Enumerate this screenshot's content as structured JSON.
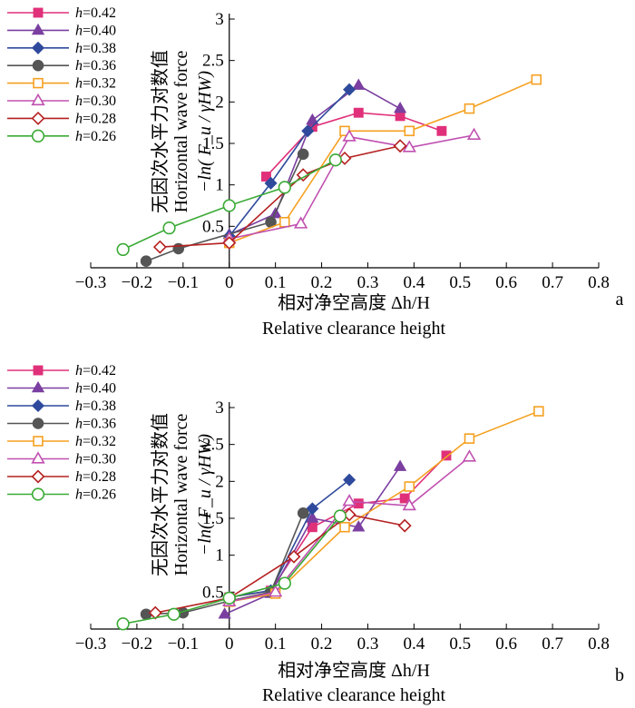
{
  "figure": {
    "panels": [
      "a",
      "b"
    ]
  },
  "chart_data": [
    {
      "type": "line",
      "panel_label": "a",
      "xlabel_cn": "相对净空高度 Δh/H",
      "xlabel_en": "Relative clearance height",
      "ylabel_cn": "无因次水平力对数值",
      "ylabel_en": "Horizontal wave force",
      "ylabel_formula": "−ln( F_u / γHW)",
      "xlim": [
        -0.3,
        0.8
      ],
      "ylim": [
        0,
        3
      ],
      "xticks": [
        -0.3,
        -0.2,
        -0.1,
        0,
        0.1,
        0.2,
        0.3,
        0.4,
        0.5,
        0.6,
        0.7,
        0.8
      ],
      "xtick_labels": [
        "−0.3",
        "−0.2",
        "−0.1",
        "0",
        "0.1",
        "0.2",
        "0.3",
        "0.4",
        "0.5",
        "0.6",
        "0.7",
        "0.8"
      ],
      "yticks": [
        0.5,
        1,
        1.5,
        2,
        2.5,
        3
      ],
      "ytick_labels": [
        "0.5",
        "1",
        "1.5",
        "2",
        "2.5",
        "3"
      ],
      "legend_position": "top-left",
      "series": [
        {
          "name": "h=0.42",
          "label_var": "h",
          "label_val": "=0.42",
          "color": "#e0307a",
          "marker": "square-filled",
          "x": [
            0.08,
            0.18,
            0.28,
            0.37,
            0.46
          ],
          "y": [
            1.1,
            1.7,
            1.87,
            1.83,
            1.65
          ]
        },
        {
          "name": "h=0.40",
          "label_var": "h",
          "label_val": "=0.40",
          "color": "#7a3fa0",
          "marker": "triangle-filled",
          "x": [
            0.0,
            0.1,
            0.18,
            0.28,
            0.37
          ],
          "y": [
            0.4,
            0.65,
            1.78,
            2.2,
            1.92
          ]
        },
        {
          "name": "h=0.38",
          "label_var": "h",
          "label_val": "=0.38",
          "color": "#2f4a9c",
          "marker": "diamond-filled",
          "x": [
            0.0,
            0.09,
            0.17,
            0.26
          ],
          "y": [
            0.38,
            1.02,
            1.65,
            2.15
          ]
        },
        {
          "name": "h=0.36",
          "label_var": "h",
          "label_val": "=0.36",
          "color": "#555555",
          "marker": "circle-filled",
          "x": [
            -0.18,
            -0.11,
            0.09,
            0.16
          ],
          "y": [
            0.08,
            0.23,
            0.55,
            1.37
          ]
        },
        {
          "name": "h=0.32",
          "label_var": "h",
          "label_val": "=0.32",
          "color": "#f5a020",
          "marker": "square-open",
          "x": [
            0.0,
            0.12,
            0.25,
            0.39,
            0.52,
            0.665
          ],
          "y": [
            0.3,
            0.55,
            1.65,
            1.65,
            1.92,
            2.27
          ]
        },
        {
          "name": "h=0.30",
          "label_var": "h",
          "label_val": "=0.30",
          "color": "#c050b0",
          "marker": "triangle-open",
          "x": [
            0.0,
            0.155,
            0.26,
            0.39,
            0.53
          ],
          "y": [
            0.35,
            0.53,
            1.58,
            1.45,
            1.6
          ]
        },
        {
          "name": "h=0.28",
          "label_var": "h",
          "label_val": "=0.28",
          "color": "#b52020",
          "marker": "diamond-open",
          "x": [
            -0.15,
            0.0,
            0.16,
            0.25,
            0.37
          ],
          "y": [
            0.25,
            0.3,
            1.12,
            1.32,
            1.47
          ]
        },
        {
          "name": "h=0.26",
          "label_var": "h",
          "label_val": "=0.26",
          "color": "#3aaa35",
          "marker": "circle-open",
          "x": [
            -0.23,
            -0.13,
            0.0,
            0.12,
            0.23
          ],
          "y": [
            0.22,
            0.48,
            0.75,
            0.97,
            1.3
          ]
        }
      ]
    },
    {
      "type": "line",
      "panel_label": "b",
      "xlabel_cn": "相对净空高度 Δh/H",
      "xlabel_en": "Relative clearance height",
      "ylabel_cn": "无因次水平力对数值",
      "ylabel_en": "Horizontal wave force",
      "ylabel_formula": "−ln( F_u / γHW)",
      "xlim": [
        -0.3,
        0.8
      ],
      "ylim": [
        0,
        3
      ],
      "xticks": [
        -0.3,
        -0.2,
        -0.1,
        0,
        0.1,
        0.2,
        0.3,
        0.4,
        0.5,
        0.6,
        0.7,
        0.8
      ],
      "xtick_labels": [
        "−0.3",
        "−0.2",
        "−0.1",
        "0",
        "0.1",
        "0.2",
        "0.3",
        "0.4",
        "0.5",
        "0.6",
        "0.7",
        "0.8"
      ],
      "yticks": [
        0.5,
        1,
        1.5,
        2,
        2.5,
        3
      ],
      "ytick_labels": [
        "0.5",
        "1",
        "1.5",
        "2",
        "2.5",
        "3"
      ],
      "legend_position": "top-left",
      "series": [
        {
          "name": "h=0.42",
          "label_var": "h",
          "label_val": "=0.42",
          "color": "#e0307a",
          "marker": "square-filled",
          "x": [
            0.0,
            0.09,
            0.18,
            0.28,
            0.38,
            0.47
          ],
          "y": [
            0.43,
            0.52,
            1.38,
            1.7,
            1.77,
            2.35
          ]
        },
        {
          "name": "h=0.40",
          "label_var": "h",
          "label_val": "=0.40",
          "color": "#7a3fa0",
          "marker": "triangle-filled",
          "x": [
            -0.01,
            0.09,
            0.18,
            0.28,
            0.37
          ],
          "y": [
            0.2,
            0.48,
            1.5,
            1.38,
            2.2
          ]
        },
        {
          "name": "h=0.38",
          "label_var": "h",
          "label_val": "=0.38",
          "color": "#2f4a9c",
          "marker": "diamond-filled",
          "x": [
            0.0,
            0.09,
            0.18,
            0.26
          ],
          "y": [
            0.43,
            0.52,
            1.63,
            2.02
          ]
        },
        {
          "name": "h=0.36",
          "label_var": "h",
          "label_val": "=0.36",
          "color": "#555555",
          "marker": "circle-filled",
          "x": [
            -0.18,
            -0.1,
            0.0,
            0.09,
            0.16
          ],
          "y": [
            0.2,
            0.22,
            0.38,
            0.5,
            1.57
          ]
        },
        {
          "name": "h=0.32",
          "label_var": "h",
          "label_val": "=0.32",
          "color": "#f5a020",
          "marker": "square-open",
          "x": [
            0.0,
            0.1,
            0.25,
            0.39,
            0.52,
            0.67
          ],
          "y": [
            0.37,
            0.48,
            1.38,
            1.93,
            2.58,
            2.95
          ]
        },
        {
          "name": "h=0.30",
          "label_var": "h",
          "label_val": "=0.30",
          "color": "#c050b0",
          "marker": "triangle-open",
          "x": [
            0.0,
            0.1,
            0.26,
            0.39,
            0.52
          ],
          "y": [
            0.37,
            0.5,
            1.73,
            1.67,
            2.33
          ]
        },
        {
          "name": "h=0.28",
          "label_var": "h",
          "label_val": "=0.28",
          "color": "#b52020",
          "marker": "diamond-open",
          "x": [
            -0.16,
            0.0,
            0.14,
            0.26,
            0.38
          ],
          "y": [
            0.22,
            0.42,
            0.98,
            1.55,
            1.4
          ]
        },
        {
          "name": "h=0.26",
          "label_var": "h",
          "label_val": "=0.26",
          "color": "#3aaa35",
          "marker": "circle-open",
          "x": [
            -0.23,
            -0.12,
            0.0,
            0.12,
            0.24
          ],
          "y": [
            0.07,
            0.2,
            0.42,
            0.62,
            1.53
          ]
        }
      ]
    }
  ]
}
